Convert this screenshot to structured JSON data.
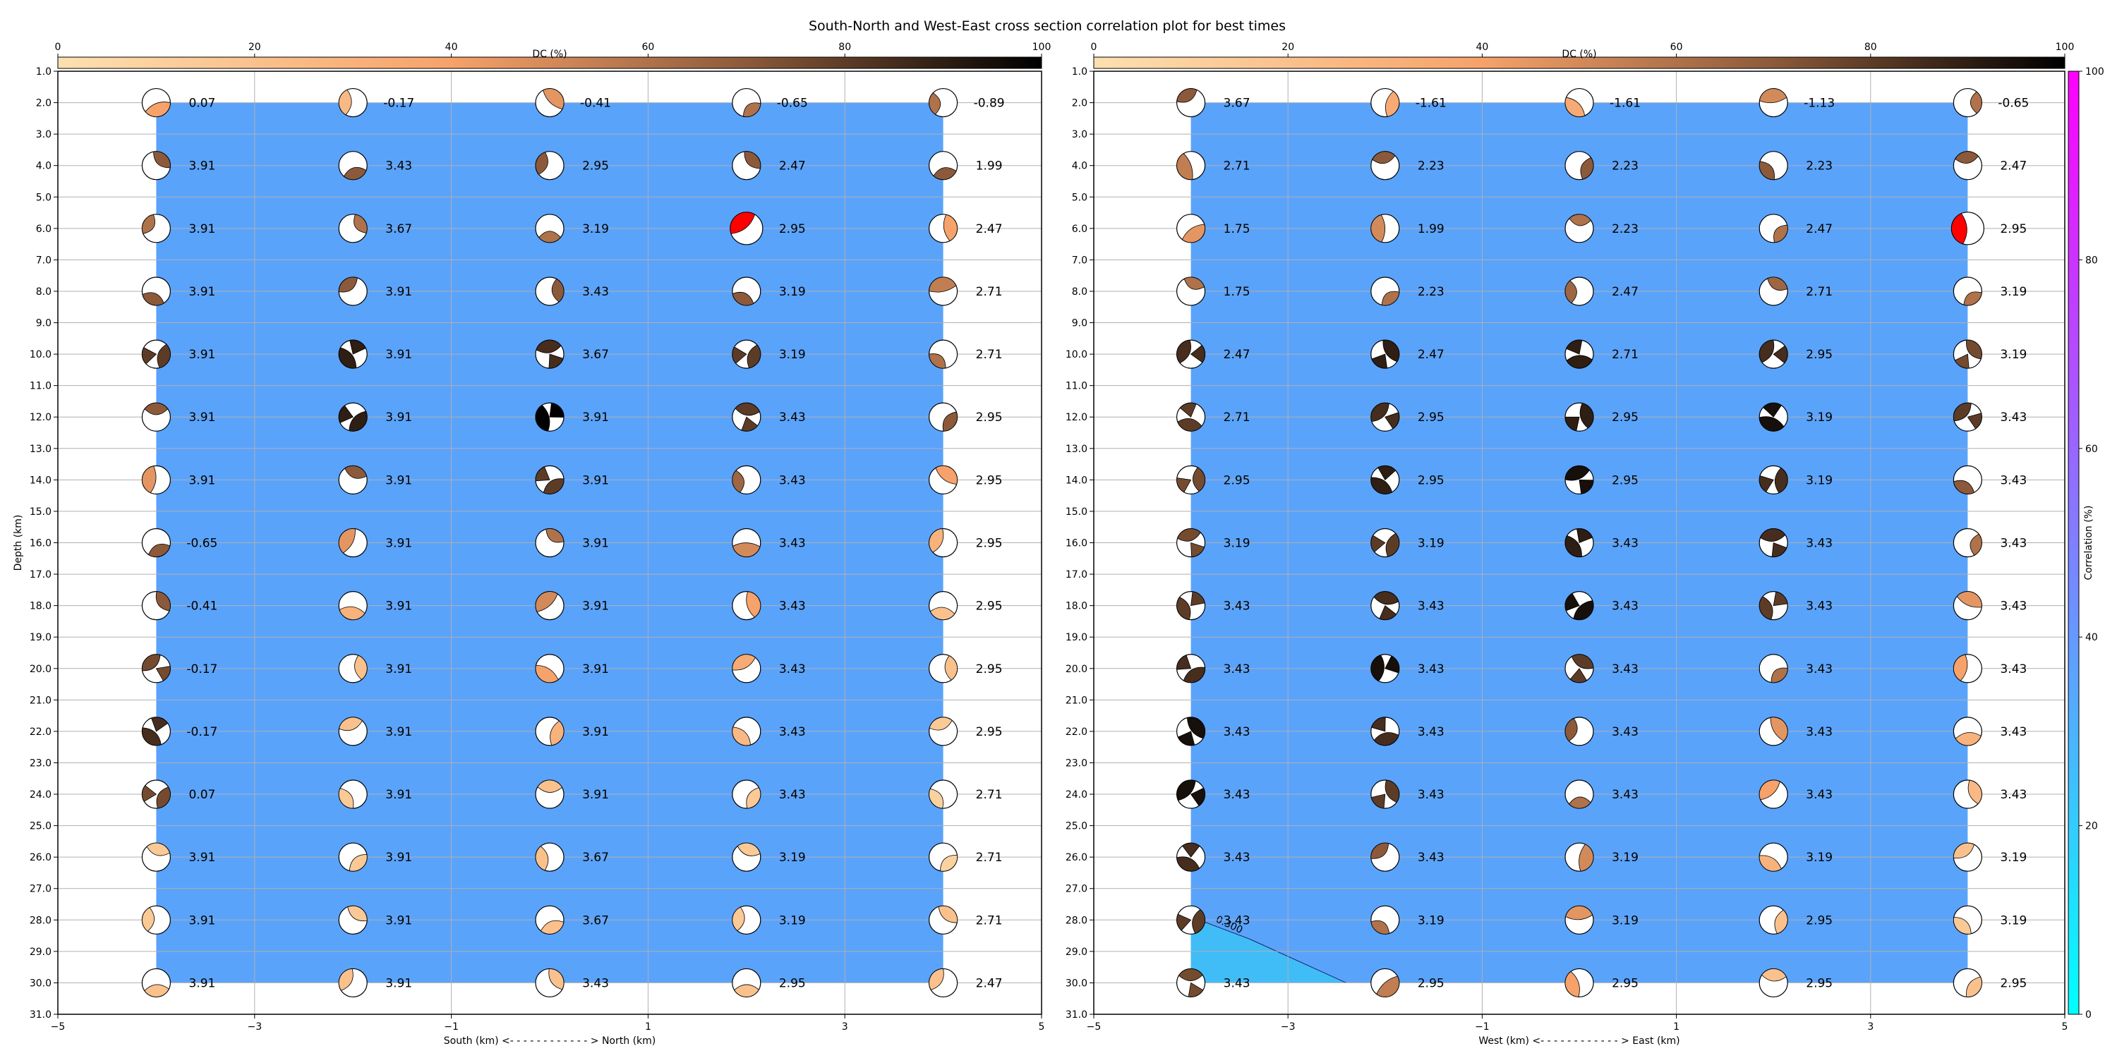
{
  "title": "South-North and West-East cross section correlation plot for best times",
  "colors": {
    "dc_start": "#fde0b0",
    "dc_mid1": "#f6a26a",
    "dc_mid2": "#8c5a3a",
    "dc_end": "#000000",
    "corr_bottom": "#00ffff",
    "corr_top": "#ff00ff",
    "fill_main": "#5aa3fb",
    "fill_low": "#40bdf6",
    "max_marker": "#ff0000",
    "grid": "#b0b0b0"
  },
  "dc_colorbar": {
    "label": "DC (%)",
    "ticks": [
      "0",
      "20",
      "40",
      "60",
      "80",
      "100"
    ],
    "range": [
      0,
      100
    ]
  },
  "corr_colorbar": {
    "label": "Correlation (%)",
    "ticks": [
      "0",
      "20",
      "40",
      "60",
      "80",
      "100"
    ],
    "range": [
      0,
      100
    ]
  },
  "chart_data": [
    {
      "type": "scatter",
      "panel": "south-north",
      "xlabel": "South (km) <- - - - - - - - - - - - > North (km)",
      "ylabel": "Depth (km)",
      "xlim": [
        -5,
        5
      ],
      "ylim": [
        31,
        1
      ],
      "x_ticks": [
        "−5",
        "−3",
        "−1",
        "1",
        "3",
        "5"
      ],
      "y_ticks": [
        "1.0",
        "2.0",
        "3.0",
        "4.0",
        "5.0",
        "6.0",
        "7.0",
        "8.0",
        "9.0",
        "10.0",
        "11.0",
        "12.0",
        "13.0",
        "14.0",
        "15.0",
        "16.0",
        "17.0",
        "18.0",
        "19.0",
        "20.0",
        "21.0",
        "22.0",
        "23.0",
        "24.0",
        "25.0",
        "26.0",
        "27.0",
        "28.0",
        "29.0",
        "30.0",
        "31.0"
      ],
      "x": [
        -4,
        -2,
        0,
        2,
        4
      ],
      "depths": [
        2,
        4,
        6,
        8,
        10,
        12,
        14,
        16,
        18,
        20,
        22,
        24,
        26,
        28,
        30
      ],
      "fill_region": {
        "x": [
          -4,
          4
        ],
        "depth": [
          2,
          30
        ]
      },
      "max_point": {
        "x": 2,
        "depth": 6
      },
      "contour": null,
      "values": [
        [
          "0.07",
          "-0.17",
          "-0.41",
          "-0.65",
          "-0.89"
        ],
        [
          "3.91",
          "3.43",
          "2.95",
          "2.47",
          "1.99"
        ],
        [
          "3.91",
          "3.67",
          "3.19",
          "2.95",
          "2.47"
        ],
        [
          "3.91",
          "3.91",
          "3.43",
          "3.19",
          "2.71"
        ],
        [
          "3.91",
          "3.91",
          "3.67",
          "3.19",
          "2.71"
        ],
        [
          "3.91",
          "3.91",
          "3.91",
          "3.43",
          "2.95"
        ],
        [
          "3.91",
          "3.91",
          "3.91",
          "3.43",
          "2.95"
        ],
        [
          "-0.65",
          "3.91",
          "3.91",
          "3.43",
          "2.95"
        ],
        [
          "-0.41",
          "3.91",
          "3.91",
          "3.43",
          "2.95"
        ],
        [
          "-0.17",
          "3.91",
          "3.91",
          "3.43",
          "2.95"
        ],
        [
          "-0.17",
          "3.91",
          "3.91",
          "3.43",
          "2.95"
        ],
        [
          "0.07",
          "3.91",
          "3.91",
          "3.43",
          "2.71"
        ],
        [
          "3.91",
          "3.91",
          "3.67",
          "3.19",
          "2.71"
        ],
        [
          "3.91",
          "3.91",
          "3.67",
          "3.19",
          "2.71"
        ],
        [
          "3.91",
          "3.91",
          "3.43",
          "2.95",
          "2.47"
        ]
      ],
      "dc": [
        [
          40,
          25,
          45,
          60,
          60
        ],
        [
          70,
          70,
          70,
          70,
          70
        ],
        [
          60,
          60,
          60,
          100,
          40
        ],
        [
          70,
          70,
          70,
          70,
          55
        ],
        [
          80,
          90,
          85,
          80,
          60
        ],
        [
          70,
          90,
          100,
          80,
          70
        ],
        [
          45,
          70,
          80,
          65,
          40
        ],
        [
          70,
          45,
          60,
          50,
          30
        ],
        [
          70,
          30,
          50,
          40,
          20
        ],
        [
          75,
          20,
          40,
          35,
          20
        ],
        [
          85,
          20,
          30,
          25,
          15
        ],
        [
          75,
          15,
          20,
          15,
          10
        ],
        [
          15,
          15,
          20,
          15,
          10
        ],
        [
          15,
          15,
          20,
          15,
          20
        ],
        [
          20,
          20,
          20,
          20,
          20
        ]
      ]
    },
    {
      "type": "scatter",
      "panel": "west-east",
      "xlabel": "West (km) <- - - - - - - - - - - - > East (km)",
      "ylabel": "",
      "xlim": [
        -5,
        5
      ],
      "ylim": [
        31,
        1
      ],
      "x_ticks": [
        "−5",
        "−3",
        "−1",
        "1",
        "3",
        "5"
      ],
      "y_ticks": [
        "1.0",
        "2.0",
        "3.0",
        "4.0",
        "5.0",
        "6.0",
        "7.0",
        "8.0",
        "9.0",
        "10.0",
        "11.0",
        "12.0",
        "13.0",
        "14.0",
        "15.0",
        "16.0",
        "17.0",
        "18.0",
        "19.0",
        "20.0",
        "21.0",
        "22.0",
        "23.0",
        "24.0",
        "25.0",
        "26.0",
        "27.0",
        "28.0",
        "29.0",
        "30.0",
        "31.0"
      ],
      "x": [
        -4,
        -2,
        0,
        2,
        4
      ],
      "depths": [
        2,
        4,
        6,
        8,
        10,
        12,
        14,
        16,
        18,
        20,
        22,
        24,
        26,
        28,
        30
      ],
      "fill_region": {
        "x": [
          -4,
          4
        ],
        "depth": [
          2,
          30
        ]
      },
      "max_point": {
        "x": 4,
        "depth": 6
      },
      "contour": {
        "label": "0.300",
        "points": [
          [
            -4,
            27.9
          ],
          [
            -3.4,
            28.6
          ],
          [
            -2.4,
            30
          ]
        ],
        "label_at": [
          -3.75,
          28.05
        ]
      },
      "values": [
        [
          "3.67",
          "-1.61",
          "-1.61",
          "-1.13",
          "-0.65"
        ],
        [
          "2.71",
          "2.23",
          "2.23",
          "2.23",
          "2.47"
        ],
        [
          "1.75",
          "1.99",
          "2.23",
          "2.47",
          "2.95"
        ],
        [
          "1.75",
          "2.23",
          "2.47",
          "2.71",
          "3.19"
        ],
        [
          "2.47",
          "2.47",
          "2.71",
          "2.95",
          "3.19"
        ],
        [
          "2.71",
          "2.95",
          "2.95",
          "3.19",
          "3.43"
        ],
        [
          "2.95",
          "2.95",
          "2.95",
          "3.19",
          "3.43"
        ],
        [
          "3.19",
          "3.19",
          "3.43",
          "3.43",
          "3.43"
        ],
        [
          "3.43",
          "3.43",
          "3.43",
          "3.43",
          "3.43"
        ],
        [
          "3.43",
          "3.43",
          "3.43",
          "3.43",
          "3.43"
        ],
        [
          "3.43",
          "3.43",
          "3.43",
          "3.43",
          "3.43"
        ],
        [
          "3.43",
          "3.43",
          "3.43",
          "3.43",
          "3.43"
        ],
        [
          "3.43",
          "3.43",
          "3.19",
          "3.19",
          "3.19"
        ],
        [
          "3.43",
          "3.19",
          "3.19",
          "2.95",
          "3.19"
        ],
        [
          "3.43",
          "2.95",
          "2.95",
          "2.95",
          "2.95"
        ]
      ],
      "dc": [
        [
          70,
          35,
          35,
          50,
          60
        ],
        [
          55,
          70,
          70,
          70,
          70
        ],
        [
          45,
          50,
          60,
          60,
          100
        ],
        [
          60,
          60,
          65,
          65,
          60
        ],
        [
          85,
          90,
          90,
          85,
          75
        ],
        [
          80,
          85,
          90,
          95,
          80
        ],
        [
          75,
          90,
          95,
          85,
          70
        ],
        [
          75,
          80,
          90,
          85,
          60
        ],
        [
          80,
          85,
          95,
          80,
          45
        ],
        [
          85,
          95,
          80,
          60,
          40
        ],
        [
          95,
          85,
          70,
          45,
          30
        ],
        [
          95,
          80,
          60,
          40,
          25
        ],
        [
          85,
          70,
          50,
          30,
          20
        ],
        [
          80,
          60,
          45,
          20,
          15
        ],
        [
          75,
          55,
          40,
          20,
          20
        ]
      ]
    }
  ]
}
